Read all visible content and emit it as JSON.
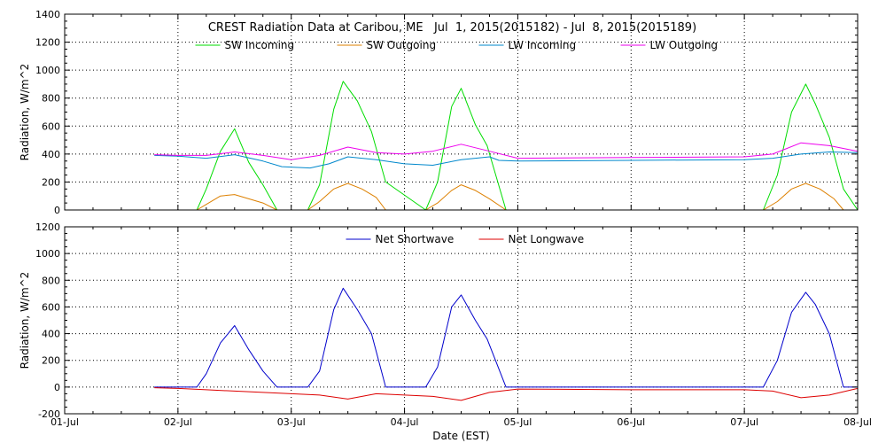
{
  "chart_data": [
    {
      "type": "line",
      "title": "CREST Radiation Data at Caribou, ME   Jul  1, 2015(2015182) - Jul  8, 2015(2015189)",
      "xlabel": "",
      "ylabel": "Radiation, W/m^2",
      "xlim": [
        "2015-07-01",
        "2015-07-08"
      ],
      "ylim": [
        0,
        1400
      ],
      "yticks": [
        0,
        200,
        400,
        600,
        800,
        1000,
        1200,
        1400
      ],
      "grid": true,
      "legend_position": "top",
      "series": [
        {
          "name": "SW Incoming",
          "color": "#00dd00",
          "x": [
            "2015-07-01T19:00",
            "2015-07-02T00:00",
            "2015-07-02T04:00",
            "2015-07-02T06:00",
            "2015-07-02T09:00",
            "2015-07-02T12:00",
            "2015-07-02T15:00",
            "2015-07-02T18:00",
            "2015-07-02T21:00",
            "2015-07-03T03:30",
            "2015-07-03T06:00",
            "2015-07-03T09:00",
            "2015-07-03T11:00",
            "2015-07-03T14:00",
            "2015-07-03T17:00",
            "2015-07-03T20:00",
            "2015-07-04T04:30",
            "2015-07-04T07:00",
            "2015-07-04T10:00",
            "2015-07-04T12:00",
            "2015-07-04T15:00",
            "2015-07-04T17:30",
            "2015-07-04T21:30",
            "2015-07-05T00:00",
            "2015-07-07T00:00",
            "2015-07-07T04:00",
            "2015-07-07T07:00",
            "2015-07-07T10:00",
            "2015-07-07T13:00",
            "2015-07-07T15:00",
            "2015-07-07T18:00",
            "2015-07-07T21:00",
            "2015-07-08T00:00"
          ],
          "y": [
            0,
            0,
            0,
            150,
            420,
            580,
            340,
            180,
            0,
            0,
            180,
            720,
            920,
            780,
            560,
            200,
            0,
            200,
            740,
            870,
            610,
            460,
            0,
            0,
            0,
            0,
            250,
            700,
            900,
            760,
            520,
            150,
            0
          ]
        },
        {
          "name": "SW Outgoing",
          "color": "#dd8000",
          "x": [
            "2015-07-01T19:00",
            "2015-07-02T04:00",
            "2015-07-02T06:00",
            "2015-07-02T09:00",
            "2015-07-02T12:00",
            "2015-07-02T15:00",
            "2015-07-02T18:00",
            "2015-07-02T21:00",
            "2015-07-03T03:30",
            "2015-07-03T06:00",
            "2015-07-03T09:00",
            "2015-07-03T12:00",
            "2015-07-03T15:00",
            "2015-07-03T18:00",
            "2015-07-03T20:00",
            "2015-07-04T04:30",
            "2015-07-04T07:00",
            "2015-07-04T10:00",
            "2015-07-04T12:00",
            "2015-07-04T15:00",
            "2015-07-04T18:00",
            "2015-07-04T21:30",
            "2015-07-07T04:00",
            "2015-07-07T07:00",
            "2015-07-07T10:00",
            "2015-07-07T13:00",
            "2015-07-07T16:00",
            "2015-07-07T19:00",
            "2015-07-07T21:00",
            "2015-07-08T00:00"
          ],
          "y": [
            0,
            0,
            40,
            100,
            110,
            80,
            50,
            0,
            0,
            60,
            150,
            190,
            150,
            90,
            0,
            0,
            50,
            140,
            180,
            140,
            80,
            0,
            0,
            60,
            150,
            190,
            150,
            80,
            0,
            0
          ]
        },
        {
          "name": "LW Incoming",
          "color": "#0088cc",
          "x": [
            "2015-07-01T19:00",
            "2015-07-02T00:00",
            "2015-07-02T06:00",
            "2015-07-02T12:00",
            "2015-07-02T18:00",
            "2015-07-02T22:00",
            "2015-07-03T04:00",
            "2015-07-03T08:00",
            "2015-07-03T12:00",
            "2015-07-03T18:00",
            "2015-07-04T00:00",
            "2015-07-04T06:00",
            "2015-07-04T12:00",
            "2015-07-04T18:00",
            "2015-07-04T20:00",
            "2015-07-05T00:00",
            "2015-07-06T00:00",
            "2015-07-07T00:00",
            "2015-07-07T06:00",
            "2015-07-07T12:00",
            "2015-07-07T18:00",
            "2015-07-08T00:00"
          ],
          "y": [
            390,
            385,
            370,
            395,
            350,
            310,
            300,
            330,
            380,
            360,
            330,
            320,
            360,
            380,
            355,
            350,
            355,
            360,
            370,
            400,
            415,
            410
          ]
        },
        {
          "name": "LW Outgoing",
          "color": "#ee00ee",
          "x": [
            "2015-07-01T19:00",
            "2015-07-02T00:00",
            "2015-07-02T06:00",
            "2015-07-02T12:00",
            "2015-07-02T18:00",
            "2015-07-03T00:00",
            "2015-07-03T06:00",
            "2015-07-03T12:00",
            "2015-07-03T18:00",
            "2015-07-04T00:00",
            "2015-07-04T06:00",
            "2015-07-04T12:00",
            "2015-07-04T18:00",
            "2015-07-05T00:00",
            "2015-07-06T00:00",
            "2015-07-07T00:00",
            "2015-07-07T06:00",
            "2015-07-07T12:00",
            "2015-07-07T18:00",
            "2015-07-08T00:00"
          ],
          "y": [
            395,
            390,
            390,
            415,
            390,
            360,
            390,
            450,
            410,
            400,
            420,
            470,
            420,
            370,
            375,
            380,
            400,
            480,
            460,
            420
          ]
        }
      ]
    },
    {
      "type": "line",
      "title": "",
      "xlabel": "Date (EST)",
      "ylabel": "Radiation, W/m^2",
      "xlim": [
        "2015-07-01",
        "2015-07-08"
      ],
      "ylim": [
        -200,
        1200
      ],
      "yticks": [
        -200,
        0,
        200,
        400,
        600,
        800,
        1000,
        1200
      ],
      "grid": true,
      "legend_position": "top",
      "series": [
        {
          "name": "Net Shortwave",
          "color": "#0000cc",
          "x": [
            "2015-07-01T19:00",
            "2015-07-02T04:00",
            "2015-07-02T06:00",
            "2015-07-02T09:00",
            "2015-07-02T12:00",
            "2015-07-02T15:00",
            "2015-07-02T18:00",
            "2015-07-02T21:00",
            "2015-07-03T03:30",
            "2015-07-03T06:00",
            "2015-07-03T09:00",
            "2015-07-03T11:00",
            "2015-07-03T14:00",
            "2015-07-03T17:00",
            "2015-07-03T20:00",
            "2015-07-04T04:30",
            "2015-07-04T07:00",
            "2015-07-04T10:00",
            "2015-07-04T12:00",
            "2015-07-04T15:00",
            "2015-07-04T17:30",
            "2015-07-04T21:30",
            "2015-07-07T04:00",
            "2015-07-07T07:00",
            "2015-07-07T10:00",
            "2015-07-07T13:00",
            "2015-07-07T15:00",
            "2015-07-07T18:00",
            "2015-07-07T21:00",
            "2015-07-08T00:00"
          ],
          "y": [
            0,
            0,
            100,
            330,
            460,
            280,
            120,
            0,
            0,
            120,
            580,
            740,
            580,
            400,
            0,
            0,
            150,
            600,
            690,
            500,
            360,
            0,
            0,
            200,
            560,
            710,
            620,
            400,
            0,
            0
          ]
        },
        {
          "name": "Net Longwave",
          "color": "#dd0000",
          "x": [
            "2015-07-01T19:00",
            "2015-07-02T00:00",
            "2015-07-02T06:00",
            "2015-07-02T12:00",
            "2015-07-02T18:00",
            "2015-07-03T00:00",
            "2015-07-03T06:00",
            "2015-07-03T12:00",
            "2015-07-03T18:00",
            "2015-07-04T00:00",
            "2015-07-04T06:00",
            "2015-07-04T12:00",
            "2015-07-04T18:00",
            "2015-07-05T00:00",
            "2015-07-06T00:00",
            "2015-07-07T00:00",
            "2015-07-07T06:00",
            "2015-07-07T12:00",
            "2015-07-07T18:00",
            "2015-07-08T00:00"
          ],
          "y": [
            -5,
            -10,
            -20,
            -30,
            -40,
            -50,
            -60,
            -90,
            -50,
            -60,
            -70,
            -100,
            -40,
            -15,
            -20,
            -20,
            -30,
            -80,
            -60,
            -10
          ]
        }
      ]
    }
  ],
  "x_tick_labels": [
    "01-Jul",
    "02-Jul",
    "03-Jul",
    "04-Jul",
    "05-Jul",
    "06-Jul",
    "07-Jul",
    "08-Jul"
  ]
}
